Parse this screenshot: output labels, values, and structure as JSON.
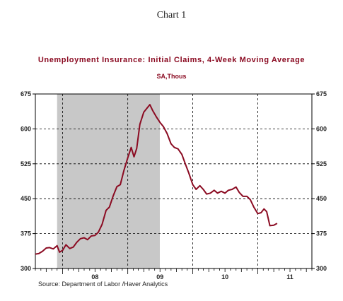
{
  "page_heading": "Chart 1",
  "source": "Source:   Department of Labor /Haver Analytics",
  "colors": {
    "line": "#8b0b22",
    "recession_shade": "#c8c8c8",
    "axis": "#000000"
  },
  "chart_data": {
    "type": "line",
    "title": "Unemployment Insurance: Initial Claims, 4-Week Moving Average",
    "subtitle": "SA,Thous",
    "xlabel": "",
    "ylabel": "",
    "x_tick_labels": [
      "08",
      "09",
      "10",
      "11"
    ],
    "y_ticks": [
      300,
      375,
      450,
      525,
      600,
      675
    ],
    "y_tick_labels": [
      "300",
      "375",
      "450",
      "525",
      "600",
      "675"
    ],
    "ylim": [
      300,
      675
    ],
    "xlim": [
      "2007-08-01",
      "2011-11-01"
    ],
    "grid": "dashed",
    "legend": "none",
    "recession_shading": {
      "start": "2007-12-01",
      "end": "2009-06-30"
    },
    "series": [
      {
        "values": [
          [
            "2007-08-01",
            331
          ],
          [
            "2007-08-20",
            332
          ],
          [
            "2007-09-10",
            337
          ],
          [
            "2007-10-01",
            344
          ],
          [
            "2007-10-20",
            345
          ],
          [
            "2007-11-10",
            342
          ],
          [
            "2007-12-01",
            349
          ],
          [
            "2007-12-15",
            335
          ],
          [
            "2008-01-01",
            339
          ],
          [
            "2008-01-20",
            351
          ],
          [
            "2008-02-10",
            343
          ],
          [
            "2008-03-01",
            346
          ],
          [
            "2008-03-20",
            356
          ],
          [
            "2008-04-10",
            364
          ],
          [
            "2008-05-01",
            366
          ],
          [
            "2008-05-20",
            362
          ],
          [
            "2008-06-10",
            370
          ],
          [
            "2008-07-01",
            371
          ],
          [
            "2008-07-20",
            378
          ],
          [
            "2008-08-10",
            395
          ],
          [
            "2008-09-01",
            425
          ],
          [
            "2008-09-20",
            432
          ],
          [
            "2008-10-10",
            455
          ],
          [
            "2008-11-01",
            476
          ],
          [
            "2008-11-20",
            480
          ],
          [
            "2008-12-10",
            510
          ],
          [
            "2009-01-01",
            538
          ],
          [
            "2009-01-20",
            560
          ],
          [
            "2009-02-05",
            540
          ],
          [
            "2009-02-20",
            558
          ],
          [
            "2009-03-10",
            610
          ],
          [
            "2009-04-01",
            636
          ],
          [
            "2009-04-20",
            645
          ],
          [
            "2009-05-05",
            652
          ],
          [
            "2009-05-20",
            640
          ],
          [
            "2009-06-10",
            626
          ],
          [
            "2009-07-01",
            614
          ],
          [
            "2009-07-20",
            605
          ],
          [
            "2009-08-10",
            590
          ],
          [
            "2009-09-01",
            568
          ],
          [
            "2009-09-20",
            560
          ],
          [
            "2009-10-10",
            557
          ],
          [
            "2009-11-01",
            545
          ],
          [
            "2009-11-20",
            525
          ],
          [
            "2009-12-10",
            505
          ],
          [
            "2010-01-01",
            480
          ],
          [
            "2010-01-20",
            470
          ],
          [
            "2010-02-10",
            478
          ],
          [
            "2010-03-01",
            470
          ],
          [
            "2010-03-20",
            460
          ],
          [
            "2010-04-10",
            462
          ],
          [
            "2010-05-01",
            468
          ],
          [
            "2010-05-20",
            462
          ],
          [
            "2010-06-10",
            466
          ],
          [
            "2010-07-01",
            462
          ],
          [
            "2010-07-20",
            468
          ],
          [
            "2010-08-10",
            470
          ],
          [
            "2010-09-01",
            475
          ],
          [
            "2010-09-20",
            463
          ],
          [
            "2010-10-10",
            455
          ],
          [
            "2010-11-01",
            455
          ],
          [
            "2010-11-20",
            448
          ],
          [
            "2010-12-10",
            432
          ],
          [
            "2011-01-01",
            418
          ],
          [
            "2011-01-20",
            420
          ],
          [
            "2011-02-05",
            428
          ],
          [
            "2011-02-20",
            422
          ],
          [
            "2011-03-10",
            392
          ],
          [
            "2011-04-01",
            393
          ],
          [
            "2011-04-20",
            397
          ]
        ]
      }
    ]
  }
}
